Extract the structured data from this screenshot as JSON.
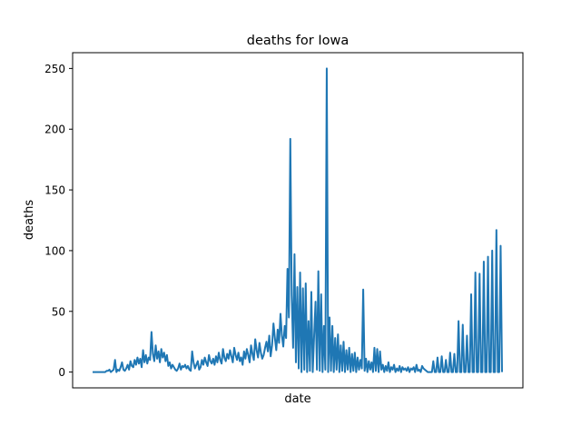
{
  "chart_data": {
    "type": "line",
    "title": "deaths for Iowa",
    "xlabel": "date",
    "ylabel": "deaths",
    "ylim": [
      -13,
      263
    ],
    "yticks": [
      0,
      50,
      100,
      150,
      200,
      250
    ],
    "grid": false,
    "legend": "none",
    "series": [
      {
        "color": "#1f77b4",
        "values": [
          0,
          0,
          0,
          0,
          0,
          0,
          0,
          0,
          0,
          0,
          1,
          1,
          2,
          0,
          1,
          2,
          10,
          0,
          2,
          1,
          4,
          8,
          2,
          1,
          3,
          6,
          2,
          9,
          5,
          4,
          10,
          6,
          12,
          7,
          11,
          4,
          18,
          8,
          14,
          7,
          12,
          10,
          33,
          15,
          9,
          22,
          11,
          17,
          8,
          19,
          12,
          16,
          9,
          14,
          5,
          8,
          3,
          6,
          4,
          2,
          1,
          3,
          7,
          2,
          5,
          4,
          6,
          3,
          5,
          2,
          1,
          17,
          8,
          3,
          6,
          9,
          2,
          4,
          10,
          6,
          12,
          8,
          5,
          14,
          9,
          7,
          11,
          6,
          13,
          8,
          16,
          10,
          7,
          19,
          12,
          9,
          15,
          11,
          18,
          13,
          8,
          20,
          14,
          10,
          16,
          9,
          12,
          6,
          17,
          11,
          19,
          14,
          8,
          22,
          15,
          10,
          27,
          18,
          12,
          24,
          16,
          11,
          14,
          20,
          25,
          17,
          30,
          13,
          22,
          40,
          28,
          18,
          35,
          24,
          48,
          30,
          21,
          38,
          28,
          85,
          45,
          192,
          63,
          20,
          97,
          8,
          70,
          3,
          82,
          0,
          69,
          2,
          73,
          0,
          42,
          1,
          66,
          0,
          30,
          58,
          2,
          83,
          1,
          64,
          0,
          38,
          2,
          250,
          0,
          45,
          1,
          38,
          0,
          28,
          2,
          31,
          0,
          22,
          1,
          25,
          0,
          18,
          2,
          20,
          0,
          15,
          1,
          16,
          0,
          12,
          2,
          10,
          3,
          68,
          1,
          11,
          0,
          9,
          2,
          8,
          0,
          20,
          1,
          19,
          0,
          17,
          2,
          6,
          0,
          5,
          1,
          8,
          0,
          4,
          2,
          6,
          0,
          3,
          1,
          5,
          0,
          4,
          2,
          3,
          1,
          4,
          0,
          3,
          2,
          4,
          0,
          6,
          1,
          2,
          0,
          5,
          3,
          2,
          1,
          0,
          0,
          0,
          0,
          9,
          0,
          0,
          12,
          0,
          0,
          13,
          0,
          0,
          10,
          0,
          0,
          16,
          0,
          0,
          15,
          0,
          0,
          42,
          0,
          0,
          39,
          0,
          0,
          30,
          0,
          0,
          64,
          0,
          0,
          82,
          0,
          0,
          81,
          0,
          0,
          91,
          0,
          0,
          95,
          0,
          0,
          100,
          0,
          0,
          117,
          0,
          0,
          104,
          0
        ]
      }
    ]
  }
}
